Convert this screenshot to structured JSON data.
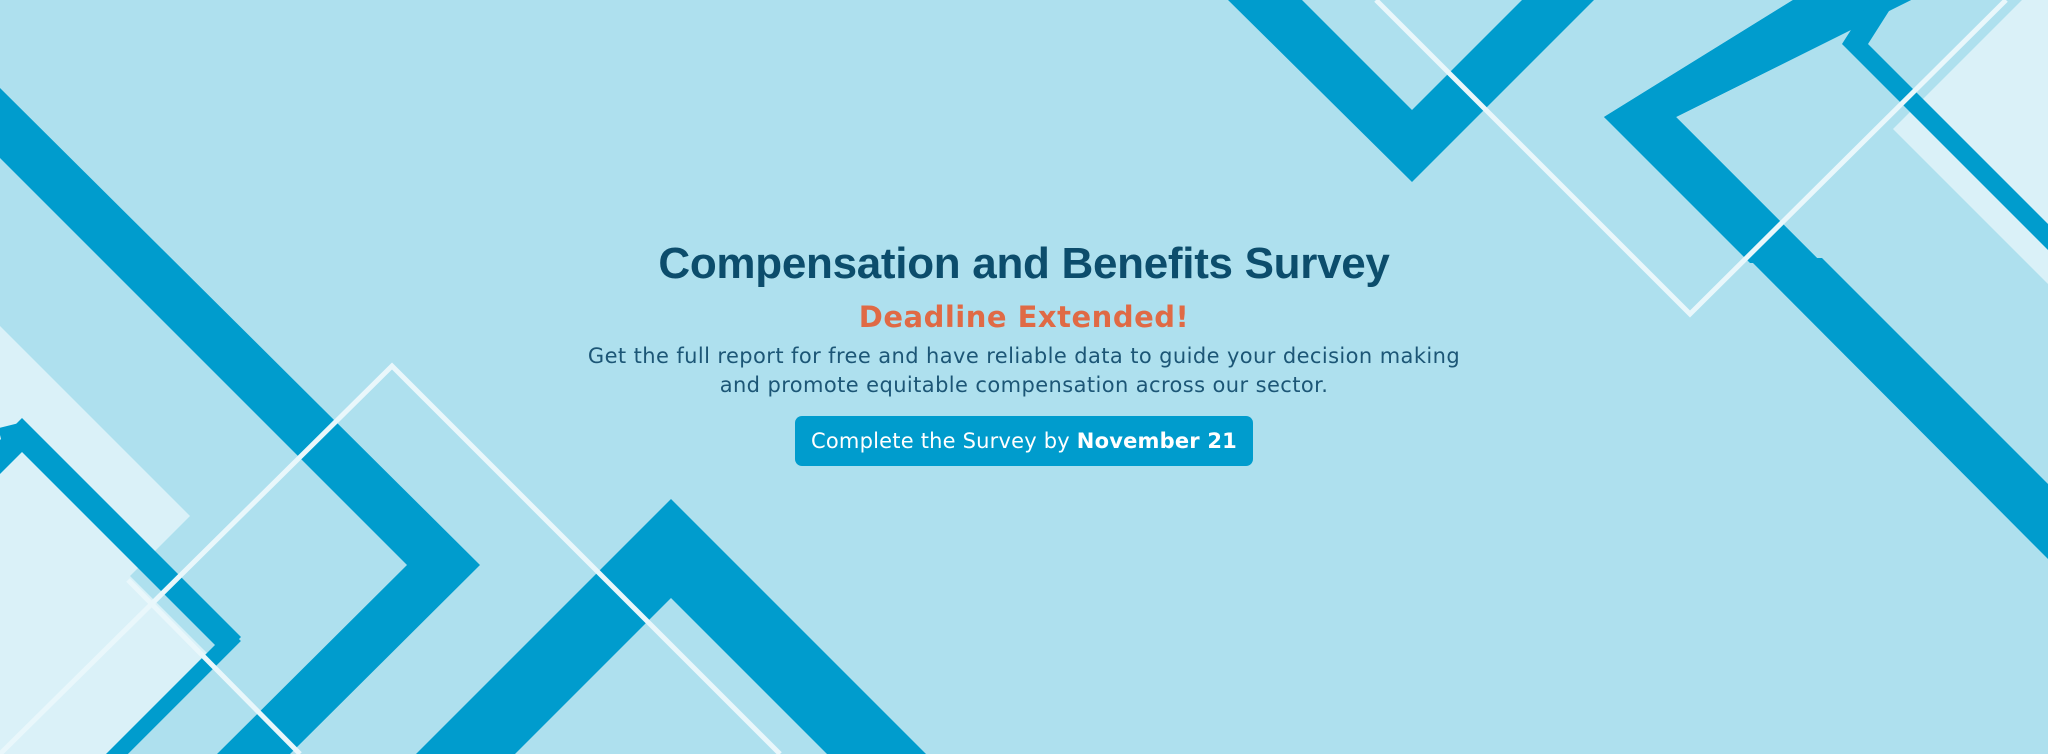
{
  "colors": {
    "background": "#aee0ee",
    "stripe": "#009ccd",
    "pale": "#daf1f8",
    "outline": "#e9f7fb",
    "title": "#0c4d6c",
    "accent": "#e06a45",
    "text": "#1c5676",
    "button": "#009ccd",
    "button_text": "#ffffff"
  },
  "banner": {
    "title": "Compensation and Benefits Survey",
    "subtitle": "Deadline Extended!",
    "description": {
      "line1": "Get the full report for free and have reliable data to guide your decision making",
      "line2": "and promote equitable compensation across our sector."
    },
    "cta": {
      "label": "Complete the Survey by ",
      "emphasis": "November 21"
    }
  }
}
